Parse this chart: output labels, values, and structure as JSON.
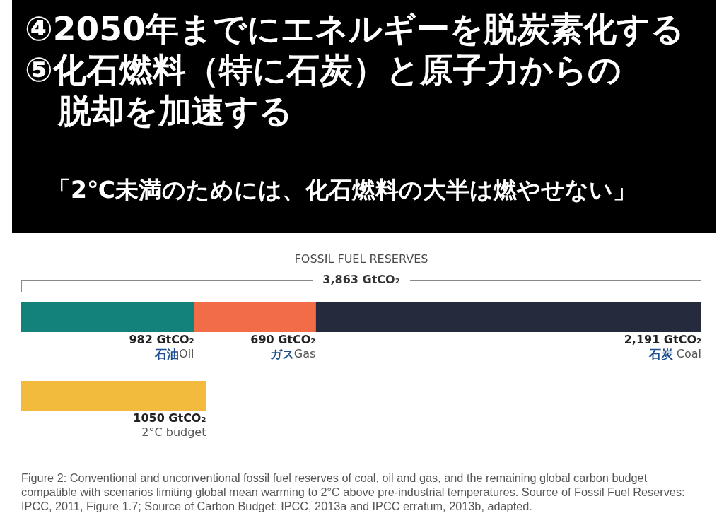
{
  "chart_data": {
    "type": "bar",
    "orientation": "horizontal",
    "stacked": true,
    "title": "④2050年までにエネルギーを脱炭素化する\n⑤化石燃料（特に石炭）と原子力からの脱却を加速する",
    "subtitle": "「2℃未満のためには、化石燃料の大半は燃やせない」",
    "categories": [
      null,
      null
    ],
    "series": [
      {
        "name": "石油Oil",
        "color": "#12827b",
        "values": [
          982,
          null
        ],
        "value_labels": [
          "982 GtCO₂",
          null
        ]
      },
      {
        "name": "ガスGas",
        "color": "#f26c47",
        "values": [
          690,
          null
        ],
        "value_labels": [
          "690 GtCO₂",
          null
        ]
      },
      {
        "name": "石炭 Coal",
        "color": "#252b3c",
        "values": [
          2191,
          null
        ],
        "value_labels": [
          "2,191 GtCO₂",
          null
        ]
      },
      {
        "name": "2°C budget",
        "color": "#f3bb3e",
        "values": [
          null,
          1050
        ],
        "value_labels": [
          null,
          "1050 GtCO₂"
        ]
      }
    ],
    "totals": [
      "3,863 GtCO₂",
      null
    ],
    "tick_labels": false,
    "annotations": [
      "FOSSIL FUEL RESERVES",
      "Figure 2: Conventional and unconventional fossil fuel reserves of coal, oil and gas, and the remaining global carbon budget compatible with scenarios limiting global mean warming to 2°C above pre-industrial temperatures. Source of Fossil Fuel Reserves: IPCC, 2011, Figure 1.7; Source of Carbon Budget: IPCC, 2013a and IPCC erratum, 2013b, adapted."
    ]
  }
}
